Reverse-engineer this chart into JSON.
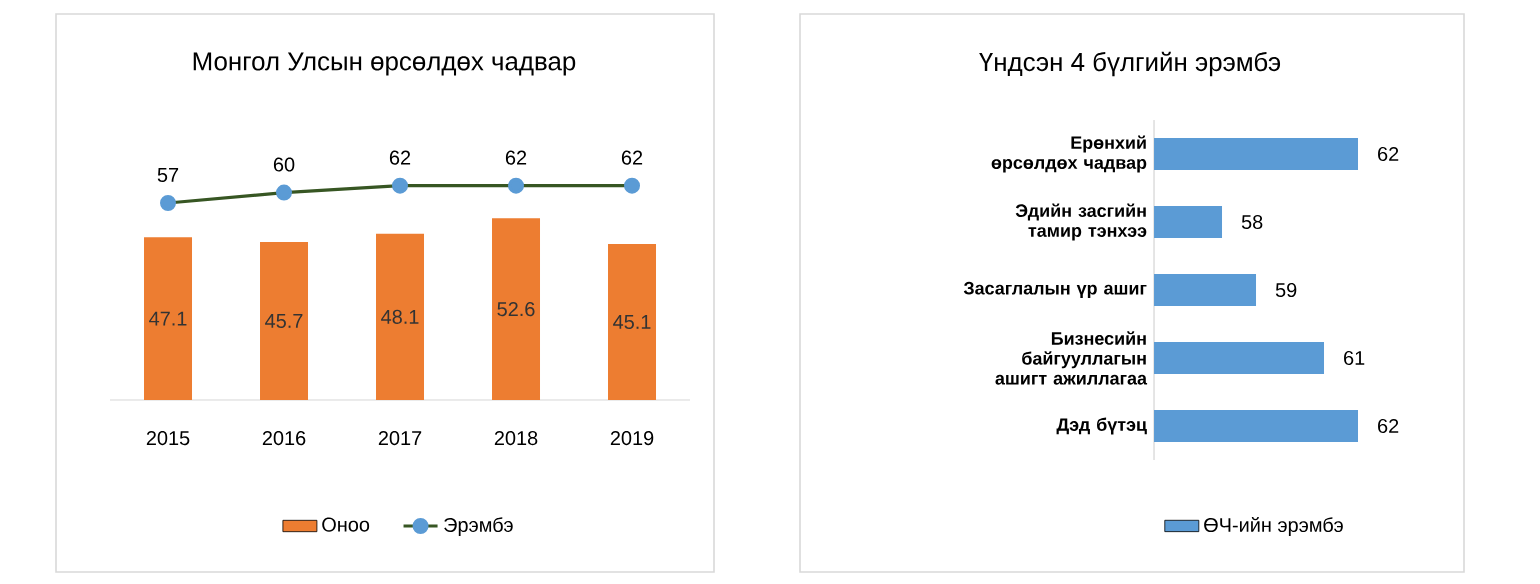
{
  "chart_data": [
    {
      "type": "bar",
      "title": "Монгол Улсын өрсөлдөх чадвар",
      "categories": [
        "2015",
        "2016",
        "2017",
        "2018",
        "2019"
      ],
      "series": [
        {
          "name": "Оноо",
          "type": "bar",
          "color": "#ed7d31",
          "values": [
            47.1,
            45.7,
            48.1,
            52.6,
            45.1
          ]
        },
        {
          "name": "Эрэмбэ",
          "type": "line",
          "color": "#375623",
          "values": [
            57,
            60,
            62,
            62,
            62
          ]
        }
      ],
      "tick_labels": "x",
      "data_labels": true,
      "legend": "bottom",
      "marker": "circle"
    },
    {
      "type": "bar",
      "orientation": "horizontal",
      "title": "Үндсэн 4 бүлгийн эрэмбэ",
      "categories": [
        "Ерөнхий өрсөлдөх чадвар",
        "Эдийн засгийн тамир тэнхээ",
        "Засаглалын үр ашиг",
        "Бизнесийн байгууллагын ашигт ажиллагаа",
        "Дэд бүтэц"
      ],
      "series": [
        {
          "name": "ӨЧ-ийн эрэмбэ",
          "color": "#5b9bd5",
          "values": [
            62,
            58,
            59,
            61,
            62
          ]
        }
      ],
      "xlim": [
        56,
        62
      ],
      "tick_labels": "y",
      "data_labels": true,
      "legend": "bottom"
    }
  ]
}
